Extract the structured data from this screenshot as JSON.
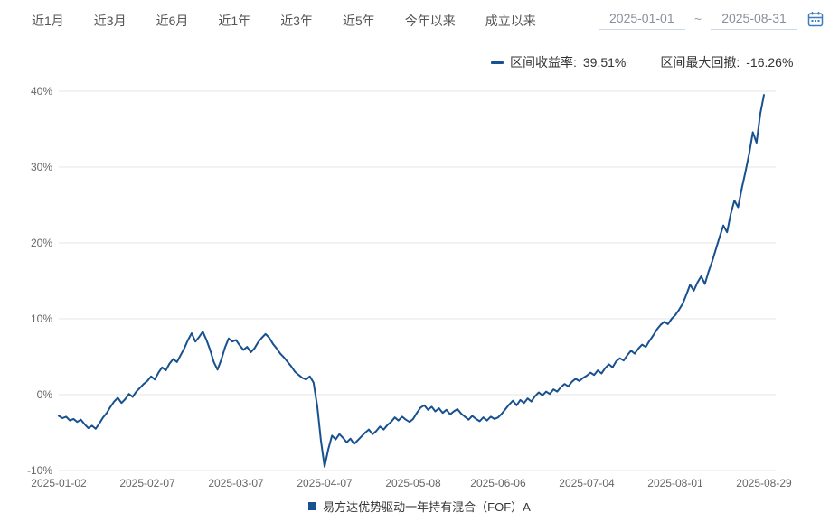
{
  "toolbar": {
    "tabs": [
      "近1月",
      "近3月",
      "近6月",
      "近1年",
      "近3年",
      "近5年",
      "今年以来",
      "成立以来"
    ],
    "date_from": "2025-01-01",
    "date_separator": "~",
    "date_to": "2025-08-31"
  },
  "stats": {
    "return_label": "区间收益率:",
    "return_value": "39.51%",
    "drawdown_label": "区间最大回撤:",
    "drawdown_value": "-16.26%"
  },
  "series_legend": {
    "name": "易方达优势驱动一年持有混合（FOF）A"
  },
  "colors": {
    "line": "#17518f",
    "accent_blue": "#3e7bbf",
    "grid": "#e6e6e6",
    "axis_text": "#666666",
    "tab_text": "#555555",
    "stat_text": "#333333"
  },
  "chart_data": {
    "type": "line",
    "title": "",
    "xlabel": "",
    "ylabel": "",
    "ylim": [
      -10,
      40
    ],
    "grid": true,
    "legend_position": "bottom",
    "y_tick_labels": [
      "40%",
      "30%",
      "20%",
      "10%",
      "0%",
      "-10%"
    ],
    "x_tick_labels": [
      "2025-01-02",
      "2025-02-07",
      "2025-03-07",
      "2025-04-07",
      "2025-05-08",
      "2025-06-06",
      "2025-07-04",
      "2025-08-01",
      "2025-08-29"
    ],
    "x_tick_indices": [
      0,
      24,
      48,
      72,
      96,
      119,
      143,
      167,
      191
    ],
    "annotations": {
      "interval_return": "39.51%",
      "max_drawdown": "-16.26%"
    },
    "series": [
      {
        "name": "易方达优势驱动一年持有混合（FOF）A",
        "unit": "%",
        "values": [
          -2.8,
          -3.1,
          -2.9,
          -3.4,
          -3.2,
          -3.6,
          -3.3,
          -3.9,
          -4.4,
          -4.1,
          -4.5,
          -3.8,
          -3.0,
          -2.4,
          -1.6,
          -0.9,
          -0.4,
          -1.1,
          -0.6,
          0.1,
          -0.3,
          0.4,
          0.9,
          1.4,
          1.8,
          2.4,
          2.0,
          2.9,
          3.6,
          3.2,
          4.1,
          4.7,
          4.3,
          5.2,
          6.1,
          7.2,
          8.1,
          7.0,
          7.6,
          8.3,
          7.2,
          5.9,
          4.3,
          3.3,
          4.6,
          6.2,
          7.4,
          7.0,
          7.2,
          6.5,
          5.9,
          6.3,
          5.6,
          6.1,
          6.9,
          7.5,
          8.0,
          7.5,
          6.7,
          6.1,
          5.4,
          4.9,
          4.3,
          3.7,
          3.0,
          2.6,
          2.2,
          2.0,
          2.4,
          1.6,
          -1.5,
          -6.0,
          -9.5,
          -7.2,
          -5.4,
          -5.9,
          -5.2,
          -5.7,
          -6.3,
          -5.8,
          -6.5,
          -6.0,
          -5.5,
          -5.0,
          -4.6,
          -5.2,
          -4.8,
          -4.2,
          -4.6,
          -4.0,
          -3.6,
          -3.0,
          -3.4,
          -2.9,
          -3.3,
          -3.6,
          -3.2,
          -2.4,
          -1.7,
          -1.4,
          -2.0,
          -1.6,
          -2.2,
          -1.8,
          -2.4,
          -2.0,
          -2.6,
          -2.2,
          -1.9,
          -2.5,
          -2.9,
          -3.3,
          -2.8,
          -3.2,
          -3.5,
          -3.0,
          -3.4,
          -2.9,
          -3.2,
          -3.0,
          -2.5,
          -1.9,
          -1.3,
          -0.8,
          -1.4,
          -0.7,
          -1.1,
          -0.5,
          -0.9,
          -0.2,
          0.3,
          -0.1,
          0.4,
          0.1,
          0.7,
          0.4,
          1.0,
          1.4,
          1.1,
          1.7,
          2.1,
          1.8,
          2.2,
          2.5,
          2.9,
          2.6,
          3.2,
          2.8,
          3.5,
          4.0,
          3.6,
          4.4,
          4.8,
          4.5,
          5.2,
          5.8,
          5.4,
          6.1,
          6.6,
          6.3,
          7.1,
          7.8,
          8.6,
          9.2,
          9.6,
          9.3,
          10.0,
          10.5,
          11.2,
          12.0,
          13.2,
          14.5,
          13.7,
          14.8,
          15.6,
          14.6,
          16.2,
          17.6,
          19.2,
          20.8,
          22.3,
          21.4,
          23.8,
          25.6,
          24.7,
          27.2,
          29.4,
          31.8,
          34.6,
          33.2,
          37.0,
          39.51
        ]
      }
    ]
  }
}
